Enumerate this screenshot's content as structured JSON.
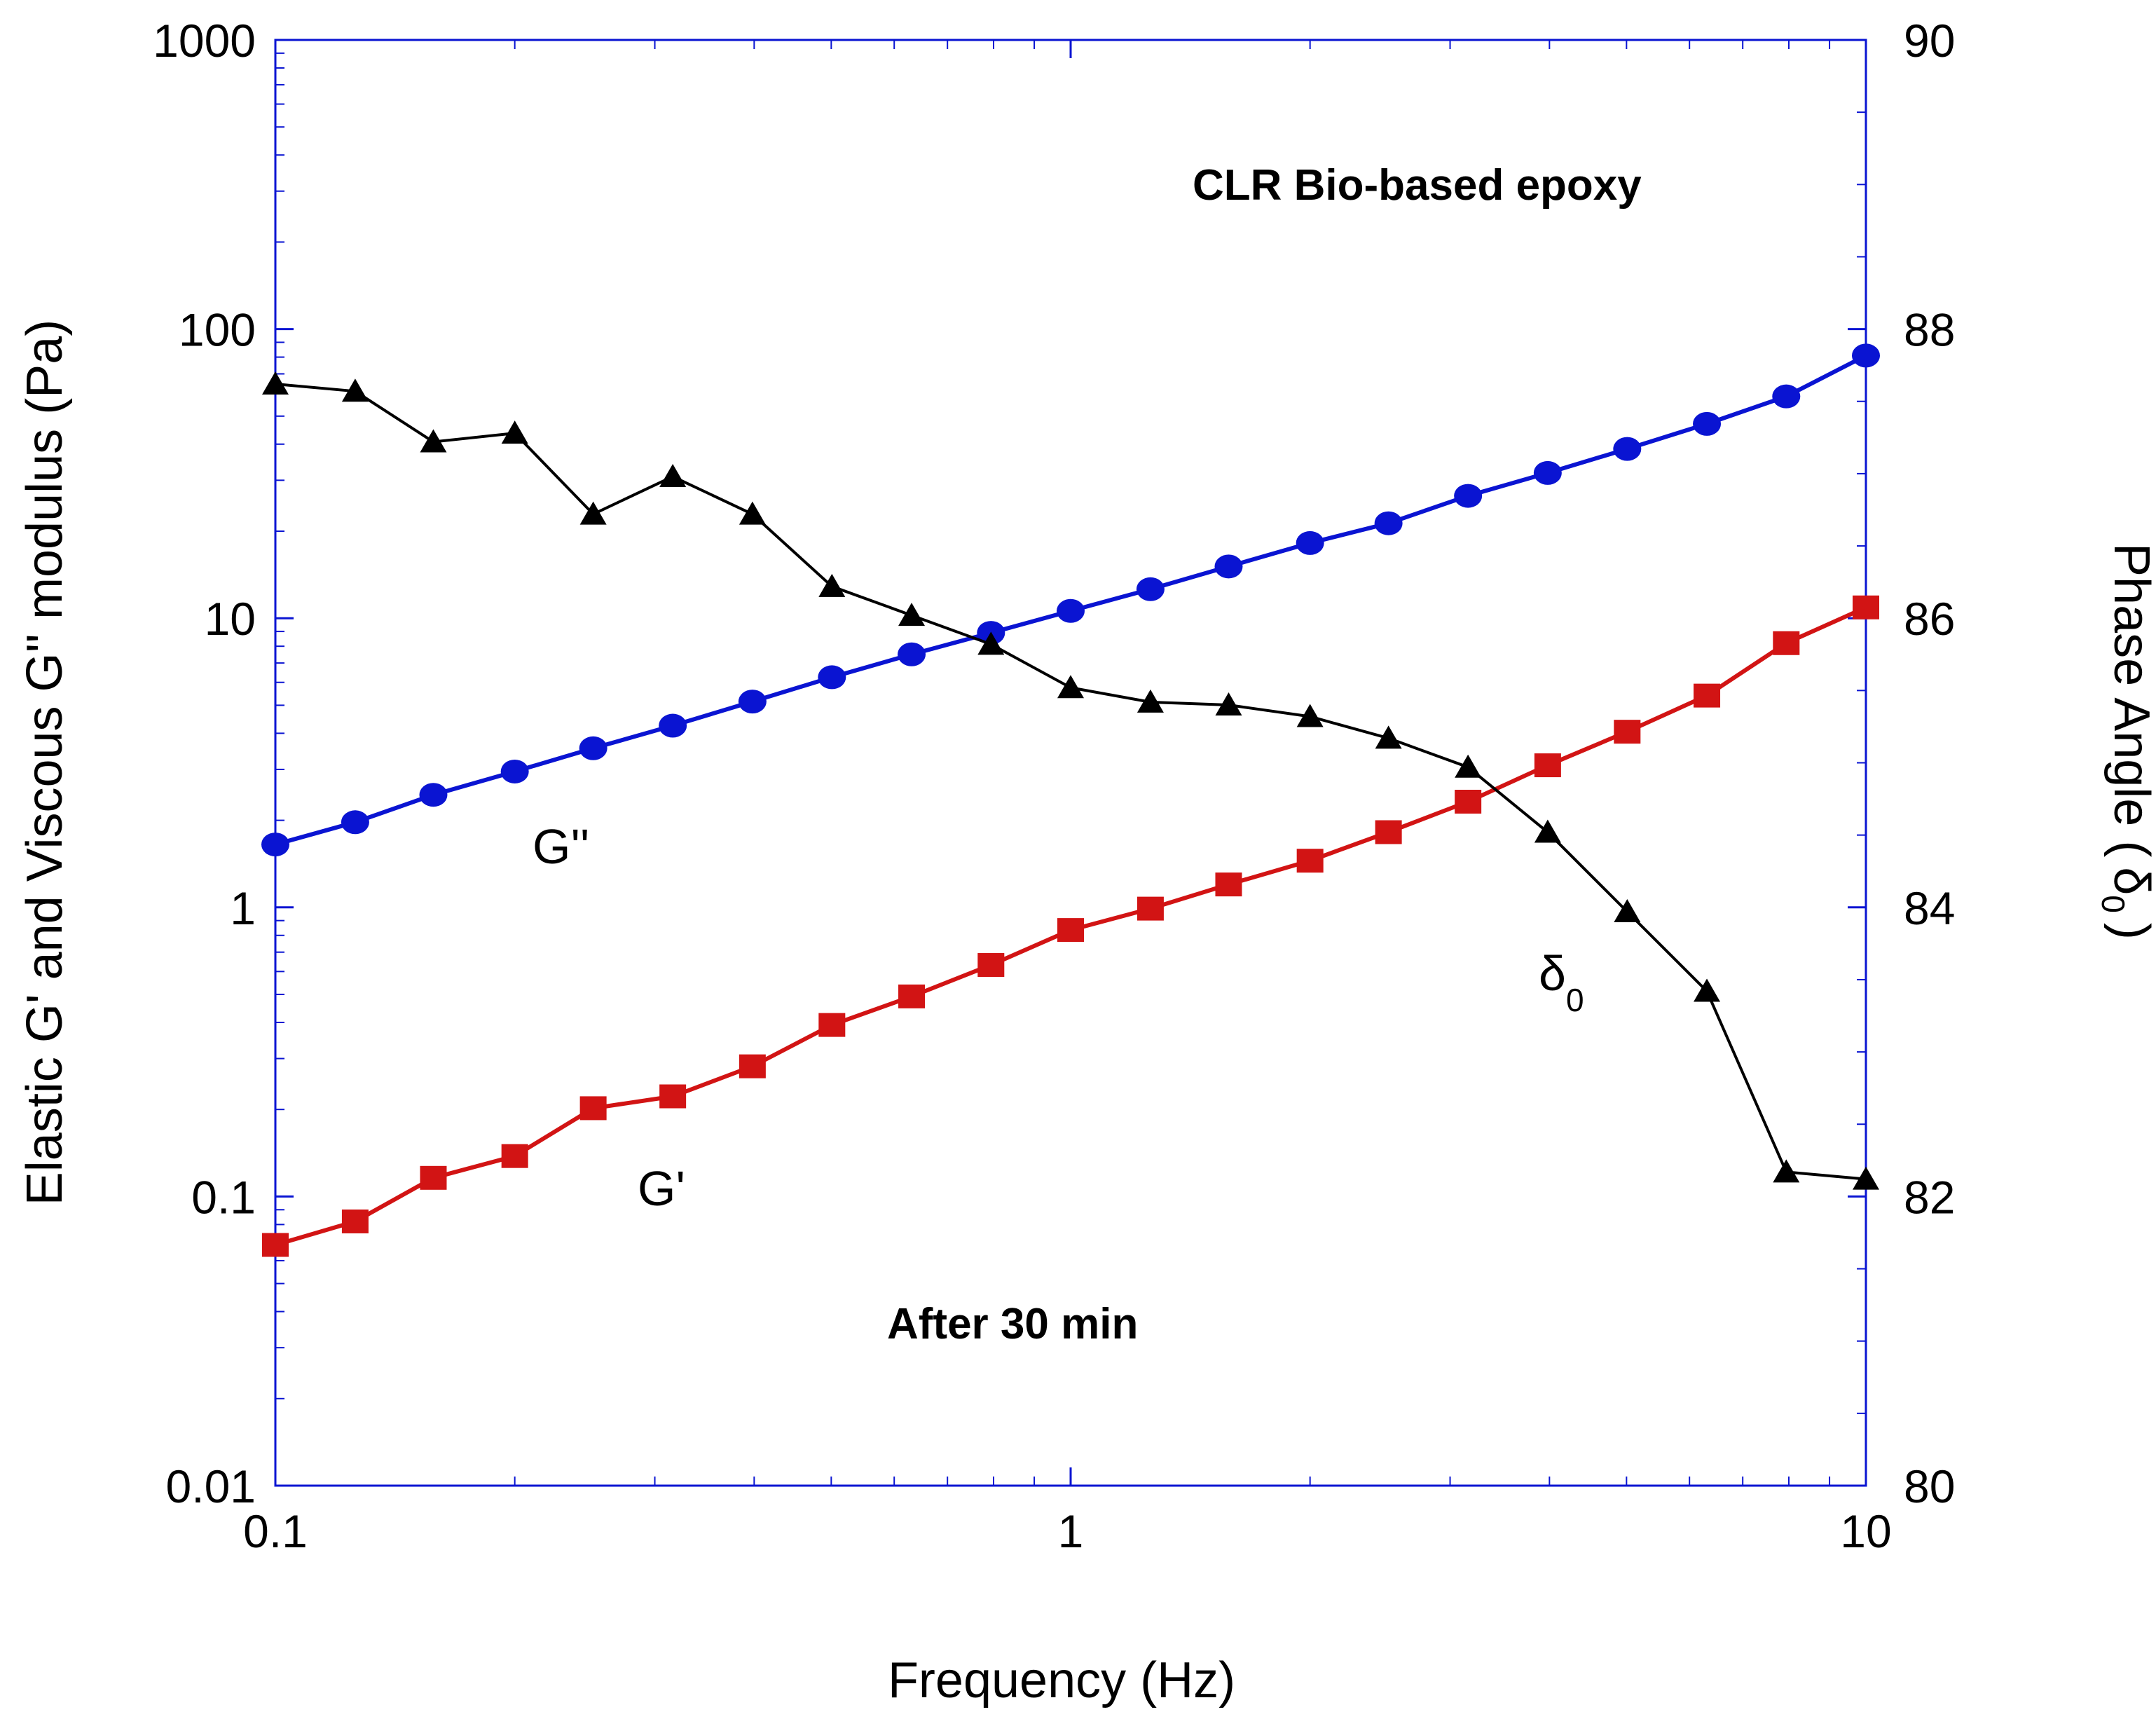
{
  "chart_data": {
    "type": "line",
    "x_scale": "log",
    "x": [
      0.1,
      0.126,
      0.158,
      0.2,
      0.251,
      0.316,
      0.398,
      0.501,
      0.631,
      0.794,
      1.0,
      1.26,
      1.58,
      2.0,
      2.51,
      3.16,
      3.98,
      5.01,
      6.31,
      7.94,
      10.0
    ],
    "xlim": [
      0.1,
      10
    ],
    "xlabel": "Frequency  (Hz)",
    "x_ticks": [
      0.1,
      1,
      10
    ],
    "x_tick_labels": [
      "0.1",
      "1",
      "10"
    ],
    "y_left": {
      "scale": "log",
      "ylim": [
        0.01,
        1000
      ],
      "ylabel": "Elastic G' and Viscous G'' modulus (Pa)",
      "ticks": [
        0.01,
        0.1,
        1,
        10,
        100,
        1000
      ],
      "tick_labels": [
        "0.01",
        "0.1",
        "1",
        "10",
        "100",
        "1000"
      ]
    },
    "y_right": {
      "scale": "linear",
      "ylim": [
        80,
        90
      ],
      "ylabel_main": "Phase Angle (",
      "ylabel_symbol": "δ",
      "ylabel_sub": "0",
      "ylabel_end": ")",
      "ticks": [
        80,
        82,
        84,
        86,
        88,
        90
      ],
      "tick_labels": [
        "80",
        "82",
        "84",
        "86",
        "88",
        "90"
      ]
    },
    "series": [
      {
        "name": "G''",
        "axis": "left",
        "marker": "circle",
        "color": "#0a14d2",
        "label": "G''",
        "values": [
          1.65,
          1.97,
          2.45,
          2.95,
          3.55,
          4.25,
          5.15,
          6.25,
          7.5,
          8.9,
          10.6,
          12.6,
          15.1,
          18.2,
          21.3,
          26.5,
          31.8,
          38.5,
          47.0,
          58.5,
          81.0
        ]
      },
      {
        "name": "G'",
        "axis": "left",
        "marker": "square",
        "color": "#d21414",
        "label": "G'",
        "values": [
          0.068,
          0.082,
          0.116,
          0.138,
          0.202,
          0.222,
          0.282,
          0.392,
          0.492,
          0.632,
          0.835,
          0.99,
          1.2,
          1.45,
          1.82,
          2.32,
          3.1,
          4.05,
          5.4,
          8.2,
          10.9
        ]
      },
      {
        "name": "δ0",
        "axis": "right",
        "marker": "triangle",
        "color": "#000000",
        "label_symbol": "δ",
        "label_sub": "0",
        "values": [
          87.62,
          87.57,
          87.22,
          87.28,
          86.72,
          86.98,
          86.72,
          86.22,
          86.02,
          85.82,
          85.52,
          85.42,
          85.4,
          85.32,
          85.17,
          84.97,
          84.52,
          83.97,
          83.42,
          82.17,
          82.12
        ]
      }
    ],
    "annotations": [
      "CLR Bio-based epoxy",
      "After 30 min"
    ],
    "grid": false,
    "legend": "none"
  }
}
